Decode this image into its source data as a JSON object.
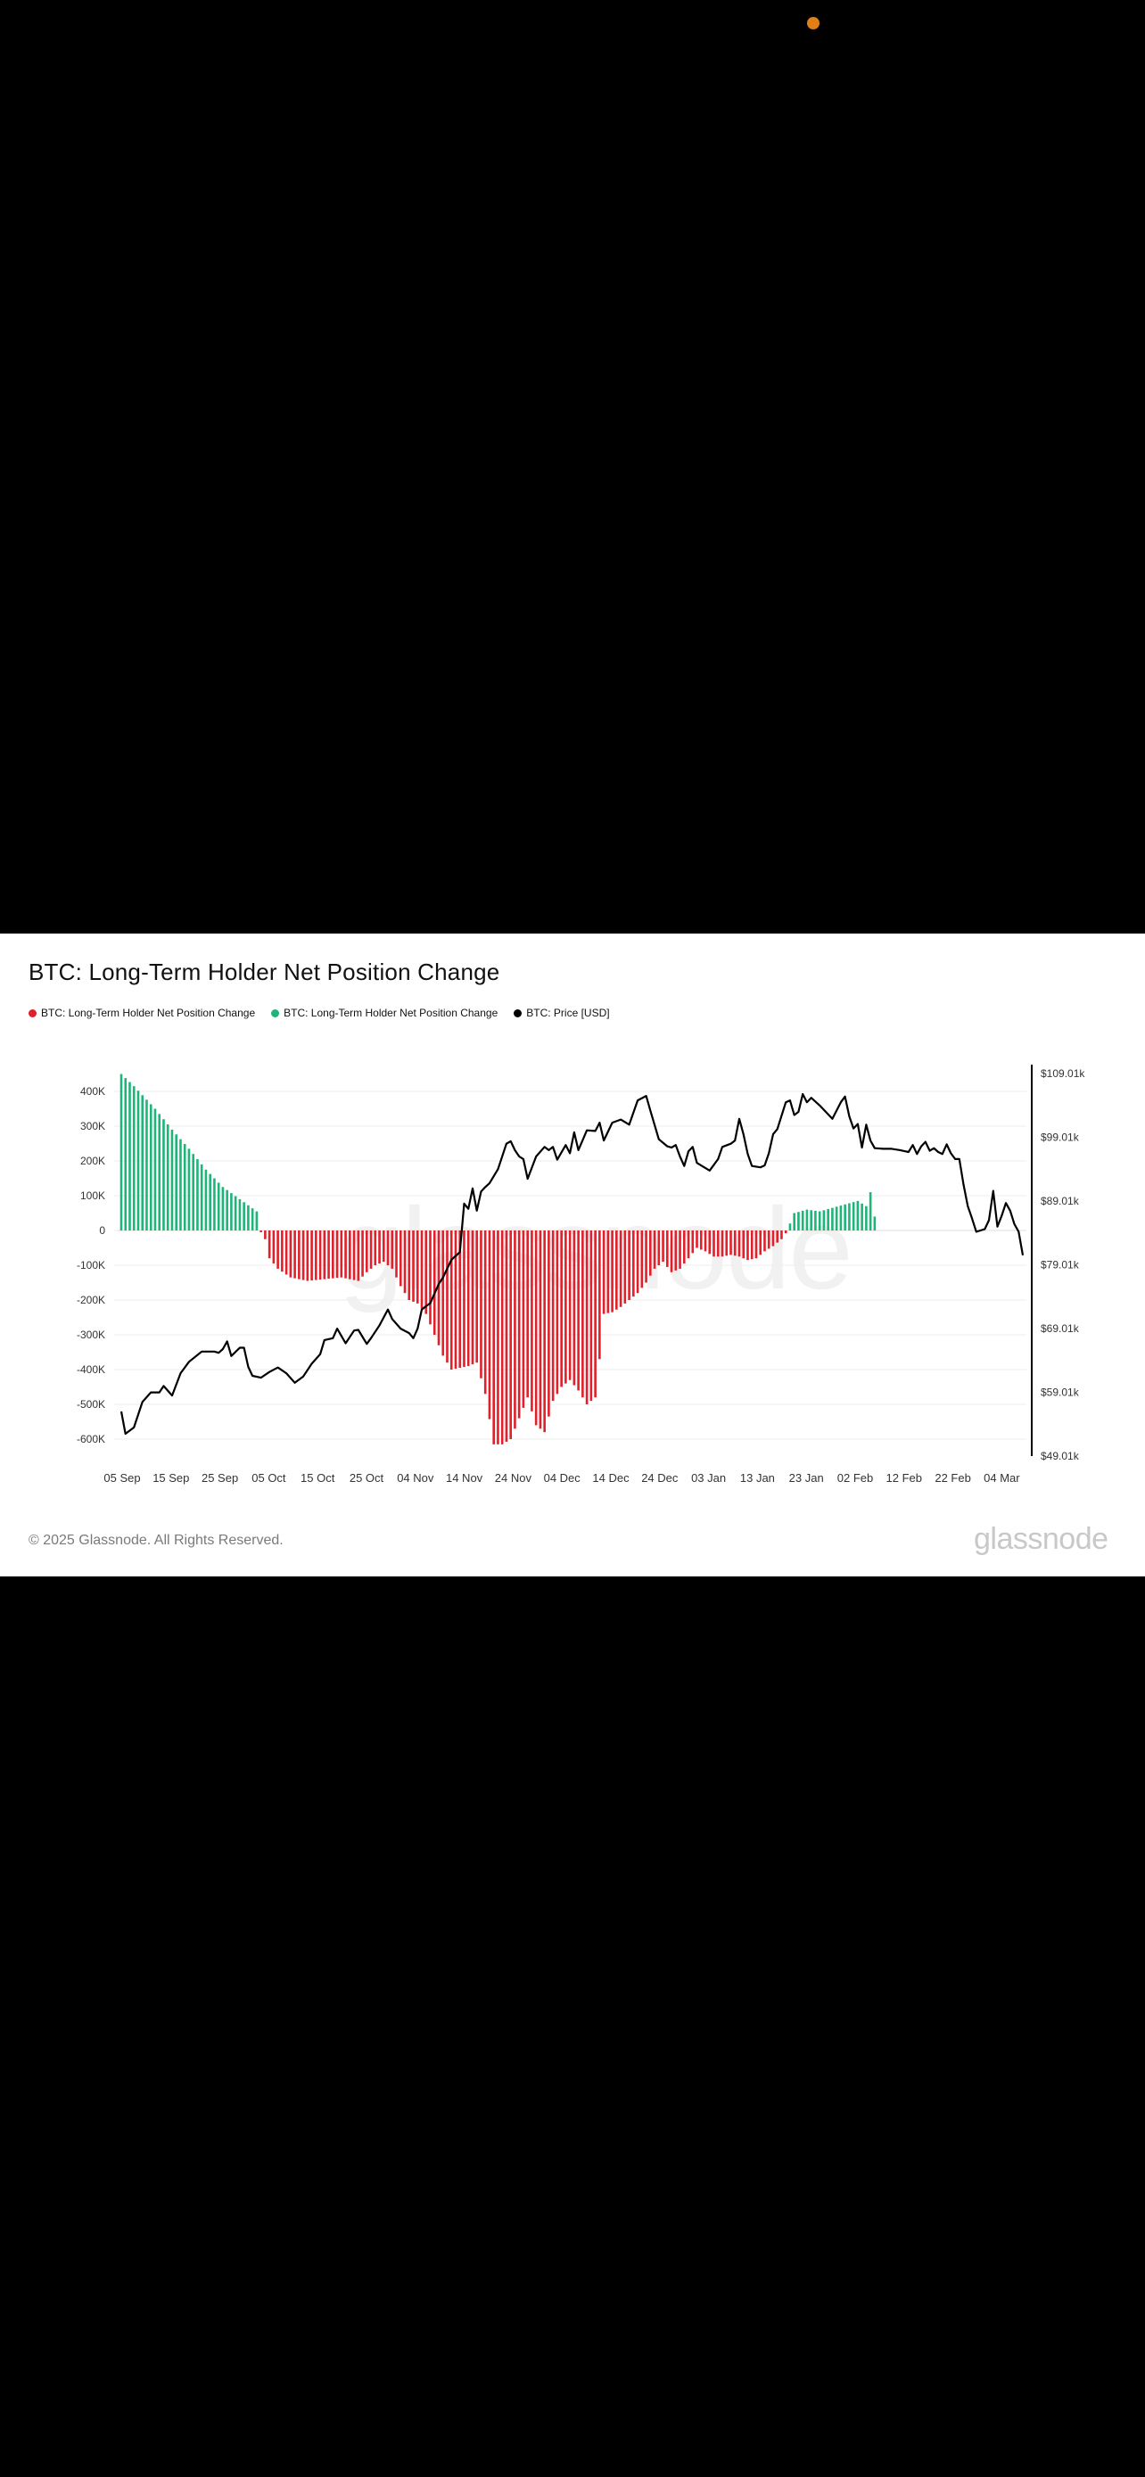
{
  "indicators": {
    "status_dot_color": "#e07f16"
  },
  "card": {
    "title": "BTC: Long-Term Holder Net Position Change",
    "footer": "© 2025 Glassnode. All Rights Reserved.",
    "logo": "glassnode"
  },
  "legend": [
    {
      "label": "BTC: Long-Term Holder Net Position Change",
      "color": "#e0202a"
    },
    {
      "label": "BTC: Long-Term Holder Net Position Change",
      "color": "#1fb57a"
    },
    {
      "label": "BTC: Price [USD]",
      "color": "#000000"
    }
  ],
  "chart_data": {
    "type": "bar",
    "title": "BTC: Long-Term Holder Net Position Change",
    "x_ticks": [
      "05 Sep",
      "15 Sep",
      "25 Sep",
      "05 Oct",
      "15 Oct",
      "25 Oct",
      "04 Nov",
      "14 Nov",
      "24 Nov",
      "04 Dec",
      "14 Dec",
      "24 Dec",
      "03 Jan",
      "13 Jan",
      "23 Jan",
      "02 Feb",
      "12 Feb",
      "22 Feb",
      "04 Mar"
    ],
    "y_left_ticks": [
      "400K",
      "300K",
      "200K",
      "100K",
      "0",
      "-100K",
      "-200K",
      "-300K",
      "-400K",
      "-500K",
      "-600K"
    ],
    "y_left_tick_values": [
      400000,
      300000,
      200000,
      100000,
      0,
      -100000,
      -200000,
      -300000,
      -400000,
      -500000,
      -600000
    ],
    "ylim_left": [
      -650000,
      450000
    ],
    "y_right_ticks": [
      "$109.01k",
      "$99.01k",
      "$89.01k",
      "$79.01k",
      "$69.01k",
      "$59.01k",
      "$49.01k"
    ],
    "y_right_tick_values": [
      109010,
      99010,
      89010,
      79010,
      69010,
      59010,
      49010
    ],
    "ylim_right": [
      49010,
      109010
    ],
    "grid": true,
    "legend_position": "top-left",
    "colors": {
      "positive": "#1fb57a",
      "negative": "#e0202a",
      "price": "#000000"
    },
    "bar_anchors": [
      [
        0,
        450000
      ],
      [
        3,
        415000
      ],
      [
        8,
        350000
      ],
      [
        12,
        290000
      ],
      [
        16,
        235000
      ],
      [
        20,
        175000
      ],
      [
        24,
        125000
      ],
      [
        28,
        90000
      ],
      [
        32,
        55000
      ],
      [
        33,
        -5000
      ],
      [
        34,
        -25000
      ],
      [
        35,
        -80000
      ],
      [
        37,
        -110000
      ],
      [
        40,
        -135000
      ],
      [
        44,
        -145000
      ],
      [
        48,
        -140000
      ],
      [
        52,
        -135000
      ],
      [
        56,
        -145000
      ],
      [
        58,
        -120000
      ],
      [
        60,
        -100000
      ],
      [
        62,
        -90000
      ],
      [
        64,
        -110000
      ],
      [
        66,
        -160000
      ],
      [
        68,
        -200000
      ],
      [
        70,
        -210000
      ],
      [
        72,
        -240000
      ],
      [
        74,
        -300000
      ],
      [
        76,
        -360000
      ],
      [
        78,
        -400000
      ],
      [
        80,
        -395000
      ],
      [
        82,
        -390000
      ],
      [
        84,
        -380000
      ],
      [
        86,
        -470000
      ],
      [
        88,
        -615000
      ],
      [
        90,
        -615000
      ],
      [
        92,
        -600000
      ],
      [
        94,
        -540000
      ],
      [
        96,
        -480000
      ],
      [
        98,
        -560000
      ],
      [
        100,
        -580000
      ],
      [
        102,
        -490000
      ],
      [
        104,
        -450000
      ],
      [
        106,
        -430000
      ],
      [
        108,
        -460000
      ],
      [
        110,
        -500000
      ],
      [
        112,
        -480000
      ],
      [
        113,
        -370000
      ],
      [
        114,
        -240000
      ],
      [
        116,
        -235000
      ],
      [
        118,
        -220000
      ],
      [
        120,
        -200000
      ],
      [
        122,
        -180000
      ],
      [
        124,
        -150000
      ],
      [
        126,
        -110000
      ],
      [
        128,
        -90000
      ],
      [
        130,
        -120000
      ],
      [
        132,
        -110000
      ],
      [
        134,
        -80000
      ],
      [
        136,
        -50000
      ],
      [
        138,
        -60000
      ],
      [
        140,
        -75000
      ],
      [
        142,
        -75000
      ],
      [
        144,
        -70000
      ],
      [
        146,
        -75000
      ],
      [
        148,
        -85000
      ],
      [
        150,
        -80000
      ],
      [
        152,
        -60000
      ],
      [
        154,
        -45000
      ],
      [
        156,
        -25000
      ],
      [
        157,
        -8000
      ],
      [
        158,
        20000
      ],
      [
        159,
        50000
      ],
      [
        162,
        60000
      ],
      [
        165,
        55000
      ],
      [
        168,
        65000
      ],
      [
        171,
        75000
      ],
      [
        174,
        85000
      ],
      [
        176,
        70000
      ],
      [
        177,
        110000
      ],
      [
        178,
        40000
      ]
    ],
    "price_anchors": [
      [
        0,
        56000
      ],
      [
        1,
        52500
      ],
      [
        3,
        53500
      ],
      [
        5,
        57500
      ],
      [
        7,
        59000
      ],
      [
        9,
        59000
      ],
      [
        10,
        60000
      ],
      [
        12,
        58500
      ],
      [
        14,
        62000
      ],
      [
        16,
        63800
      ],
      [
        19,
        65400
      ],
      [
        22,
        65400
      ],
      [
        23,
        65200
      ],
      [
        24,
        65800
      ],
      [
        25,
        67000
      ],
      [
        26,
        64700
      ],
      [
        28,
        66000
      ],
      [
        29,
        66000
      ],
      [
        30,
        63000
      ],
      [
        31,
        61600
      ],
      [
        33,
        61300
      ],
      [
        35,
        62200
      ],
      [
        37,
        62900
      ],
      [
        39,
        62000
      ],
      [
        41,
        60500
      ],
      [
        43,
        61500
      ],
      [
        45,
        63500
      ],
      [
        47,
        65000
      ],
      [
        48,
        67200
      ],
      [
        50,
        67500
      ],
      [
        51,
        69000
      ],
      [
        53,
        66700
      ],
      [
        55,
        68700
      ],
      [
        56,
        68800
      ],
      [
        58,
        66600
      ],
      [
        59,
        67500
      ],
      [
        61,
        69500
      ],
      [
        63,
        72000
      ],
      [
        64,
        70500
      ],
      [
        66,
        69000
      ],
      [
        68,
        68300
      ],
      [
        69,
        67500
      ],
      [
        70,
        69000
      ],
      [
        71,
        72000
      ],
      [
        72,
        72500
      ],
      [
        73,
        73000
      ],
      [
        75,
        76000
      ],
      [
        76,
        77000
      ],
      [
        78,
        79800
      ],
      [
        80,
        81000
      ],
      [
        81,
        88600
      ],
      [
        82,
        87800
      ],
      [
        83,
        91000
      ],
      [
        84,
        87500
      ],
      [
        85,
        90500
      ],
      [
        86,
        91200
      ],
      [
        87,
        91800
      ],
      [
        89,
        94000
      ],
      [
        91,
        98000
      ],
      [
        92,
        98400
      ],
      [
        93,
        97000
      ],
      [
        94,
        96000
      ],
      [
        95,
        95600
      ],
      [
        96,
        92500
      ],
      [
        98,
        96000
      ],
      [
        100,
        97500
      ],
      [
        101,
        97000
      ],
      [
        102,
        97500
      ],
      [
        103,
        95500
      ],
      [
        105,
        97800
      ],
      [
        106,
        96500
      ],
      [
        107,
        99800
      ],
      [
        108,
        97000
      ],
      [
        110,
        100100
      ],
      [
        112,
        100000
      ],
      [
        113,
        101300
      ],
      [
        114,
        98500
      ],
      [
        116,
        101300
      ],
      [
        118,
        101800
      ],
      [
        120,
        101000
      ],
      [
        122,
        104800
      ],
      [
        124,
        105500
      ],
      [
        125,
        103200
      ],
      [
        127,
        98700
      ],
      [
        129,
        97600
      ],
      [
        130,
        97400
      ],
      [
        131,
        97800
      ],
      [
        132,
        96000
      ],
      [
        133,
        94500
      ],
      [
        134,
        96800
      ],
      [
        135,
        97500
      ],
      [
        136,
        95000
      ],
      [
        138,
        94200
      ],
      [
        139,
        93800
      ],
      [
        141,
        95600
      ],
      [
        142,
        97500
      ],
      [
        144,
        98000
      ],
      [
        145,
        98500
      ],
      [
        146,
        101900
      ],
      [
        147,
        99500
      ],
      [
        148,
        96400
      ],
      [
        149,
        94500
      ],
      [
        151,
        94300
      ],
      [
        152,
        94600
      ],
      [
        153,
        96500
      ],
      [
        154,
        99500
      ],
      [
        155,
        100300
      ],
      [
        157,
        104500
      ],
      [
        158,
        104800
      ],
      [
        159,
        102500
      ],
      [
        160,
        103000
      ],
      [
        161,
        105800
      ],
      [
        162,
        104500
      ],
      [
        163,
        105200
      ],
      [
        165,
        104000
      ],
      [
        167,
        102600
      ],
      [
        168,
        101900
      ],
      [
        170,
        104500
      ],
      [
        171,
        105400
      ],
      [
        172,
        102300
      ],
      [
        173,
        100400
      ],
      [
        174,
        101100
      ],
      [
        175,
        97400
      ],
      [
        176,
        101000
      ],
      [
        177,
        98500
      ],
      [
        178,
        97300
      ],
      [
        180,
        97200
      ],
      [
        182,
        97200
      ],
      [
        184,
        97000
      ],
      [
        186,
        96700
      ],
      [
        187,
        97800
      ],
      [
        188,
        96400
      ],
      [
        189,
        97600
      ],
      [
        190,
        98300
      ],
      [
        191,
        96900
      ],
      [
        192,
        97300
      ],
      [
        193,
        96700
      ],
      [
        194,
        96400
      ],
      [
        195,
        97900
      ],
      [
        196,
        96500
      ],
      [
        197,
        95600
      ],
      [
        198,
        95600
      ],
      [
        199,
        91600
      ],
      [
        200,
        88200
      ],
      [
        201,
        86300
      ],
      [
        202,
        84200
      ],
      [
        204,
        84600
      ],
      [
        205,
        86000
      ],
      [
        206,
        90600
      ],
      [
        207,
        85000
      ],
      [
        208,
        86700
      ],
      [
        209,
        88700
      ],
      [
        210,
        87500
      ],
      [
        211,
        85400
      ],
      [
        212,
        84200
      ],
      [
        213,
        80500
      ]
    ]
  }
}
